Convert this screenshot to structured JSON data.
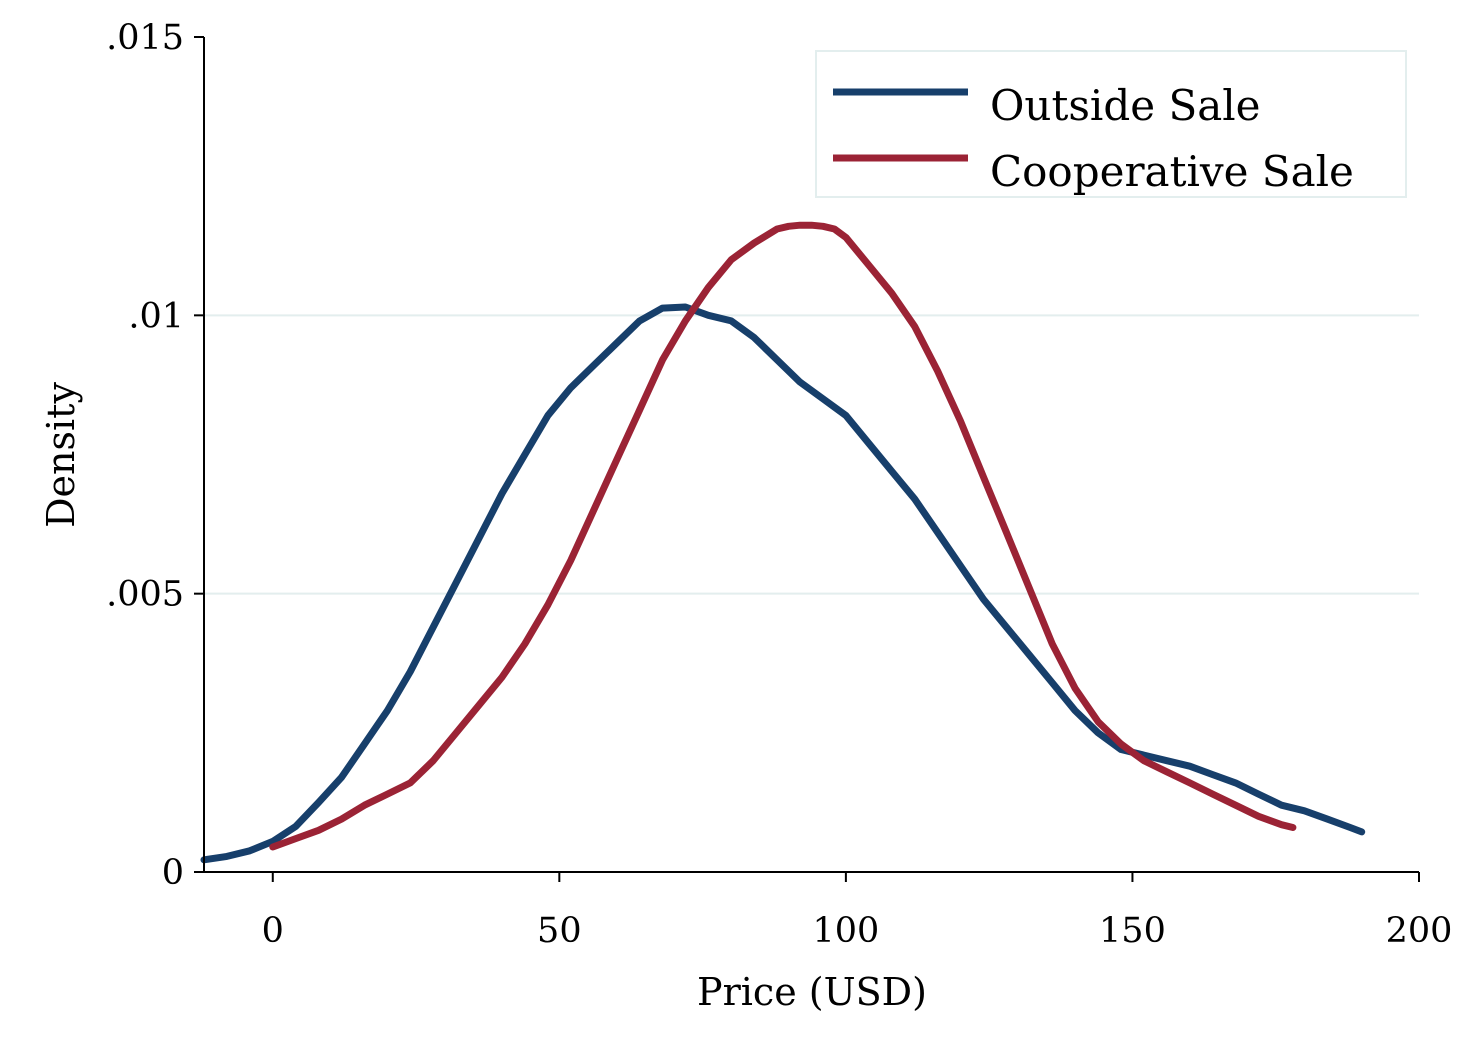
{
  "chart_data": {
    "type": "line",
    "title": "",
    "xlabel": "Price (USD)",
    "ylabel": "Density",
    "xlim": [
      -12,
      200
    ],
    "ylim": [
      0,
      0.015
    ],
    "x_ticks": [
      0,
      50,
      100,
      150,
      200
    ],
    "x_tick_labels": [
      "0",
      "50",
      "100",
      "150",
      "200"
    ],
    "y_ticks": [
      0,
      0.005,
      0.01,
      0.015
    ],
    "y_tick_labels": [
      "0",
      ".005",
      ".01",
      ".015"
    ],
    "grid": "horizontal",
    "legend_position": "top-right",
    "series": [
      {
        "name": "Outside Sale",
        "color": "#173f6b",
        "x": [
          -12,
          -8,
          -4,
          0,
          4,
          8,
          12,
          16,
          20,
          24,
          28,
          32,
          36,
          40,
          44,
          48,
          52,
          56,
          60,
          64,
          68,
          72,
          76,
          80,
          84,
          88,
          92,
          96,
          100,
          104,
          108,
          112,
          116,
          120,
          124,
          128,
          132,
          136,
          140,
          144,
          148,
          152,
          156,
          160,
          164,
          168,
          172,
          176,
          180,
          184,
          188,
          190
        ],
        "y": [
          0.00022,
          0.00028,
          0.00038,
          0.00055,
          0.00082,
          0.00125,
          0.0017,
          0.0023,
          0.0029,
          0.0036,
          0.0044,
          0.0052,
          0.006,
          0.0068,
          0.0075,
          0.0082,
          0.0087,
          0.0091,
          0.0095,
          0.0099,
          0.01013,
          0.01015,
          0.01,
          0.0099,
          0.0096,
          0.0092,
          0.0088,
          0.0085,
          0.0082,
          0.0077,
          0.0072,
          0.0067,
          0.0061,
          0.0055,
          0.0049,
          0.0044,
          0.0039,
          0.0034,
          0.0029,
          0.0025,
          0.0022,
          0.0021,
          0.002,
          0.0019,
          0.00175,
          0.0016,
          0.0014,
          0.0012,
          0.0011,
          0.00095,
          0.0008,
          0.00072
        ]
      },
      {
        "name": "Cooperative Sale",
        "color": "#9b2335",
        "x": [
          0,
          4,
          8,
          12,
          16,
          20,
          24,
          28,
          32,
          36,
          40,
          44,
          48,
          52,
          56,
          60,
          64,
          68,
          72,
          76,
          80,
          84,
          88,
          90,
          92,
          94,
          96,
          98,
          100,
          104,
          108,
          112,
          116,
          120,
          124,
          128,
          132,
          136,
          140,
          144,
          148,
          152,
          156,
          160,
          164,
          168,
          172,
          176,
          178
        ],
        "y": [
          0.00045,
          0.0006,
          0.00075,
          0.00095,
          0.0012,
          0.0014,
          0.0016,
          0.002,
          0.0025,
          0.003,
          0.0035,
          0.0041,
          0.0048,
          0.0056,
          0.0065,
          0.0074,
          0.0083,
          0.0092,
          0.0099,
          0.0105,
          0.011,
          0.0113,
          0.01155,
          0.0116,
          0.01162,
          0.01162,
          0.0116,
          0.01155,
          0.0114,
          0.0109,
          0.0104,
          0.0098,
          0.009,
          0.0081,
          0.0071,
          0.0061,
          0.0051,
          0.0041,
          0.0033,
          0.0027,
          0.0023,
          0.002,
          0.0018,
          0.0016,
          0.0014,
          0.0012,
          0.001,
          0.00085,
          0.0008
        ]
      }
    ]
  }
}
